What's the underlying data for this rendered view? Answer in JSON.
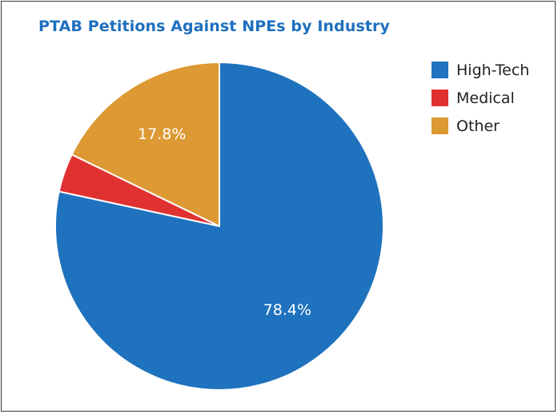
{
  "chart_data": {
    "type": "pie",
    "title": "PTAB Petitions Against NPEs by Industry",
    "categories": [
      "High-Tech",
      "Medical",
      "Other"
    ],
    "values": [
      78.4,
      3.8,
      17.8
    ],
    "value_labels": [
      "78.4%",
      "",
      "17.8%"
    ],
    "colors": [
      "#1f72bd",
      "#e03131",
      "#dd9933"
    ],
    "start_angle_deg": 0,
    "direction": "clockwise",
    "legend": "right"
  }
}
